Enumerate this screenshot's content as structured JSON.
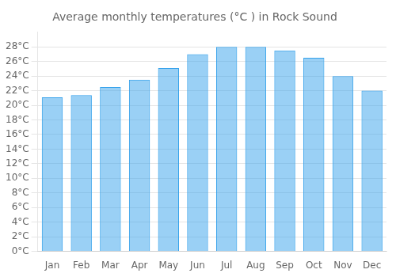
{
  "chart_data": {
    "type": "bar",
    "title": "Average monthly temperatures (°C ) in Rock Sound",
    "categories": [
      "Jan",
      "Feb",
      "Mar",
      "Apr",
      "May",
      "Jun",
      "Jul",
      "Aug",
      "Sep",
      "Oct",
      "Nov",
      "Dec"
    ],
    "values": [
      21.1,
      21.4,
      22.5,
      23.5,
      25.1,
      27.0,
      28.0,
      28.0,
      27.5,
      26.5,
      24.0,
      22.0
    ],
    "ylim": [
      0,
      30
    ],
    "yticks": [
      {
        "value": 0,
        "label": "0°C"
      },
      {
        "value": 2,
        "label": "2°C"
      },
      {
        "value": 4,
        "label": "4°C"
      },
      {
        "value": 6,
        "label": "6°C"
      },
      {
        "value": 8,
        "label": "8°C"
      },
      {
        "value": 10,
        "label": "10°C"
      },
      {
        "value": 12,
        "label": "12°C"
      },
      {
        "value": 14,
        "label": "14°C"
      },
      {
        "value": 16,
        "label": "16°C"
      },
      {
        "value": 18,
        "label": "18°C"
      },
      {
        "value": 20,
        "label": "20°C"
      },
      {
        "value": 22,
        "label": "22°C"
      },
      {
        "value": 24,
        "label": "24°C"
      },
      {
        "value": 26,
        "label": "26°C"
      },
      {
        "value": 28,
        "label": "28°C"
      }
    ],
    "grid": true
  }
}
